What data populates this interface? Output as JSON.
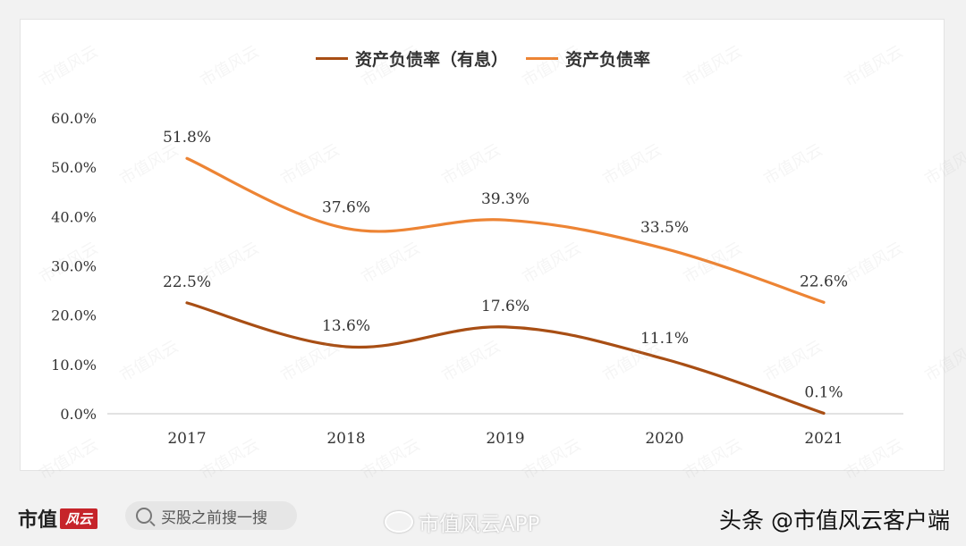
{
  "chart_data": {
    "type": "line",
    "title": "",
    "xlabel": "",
    "ylabel": "",
    "categories": [
      "2017",
      "2018",
      "2019",
      "2020",
      "2021"
    ],
    "ylim": [
      0,
      60
    ],
    "yticks": [
      "0.0%",
      "10.0%",
      "20.0%",
      "30.0%",
      "40.0%",
      "50.0%",
      "60.0%"
    ],
    "grid": false,
    "legend_position": "top-center",
    "series": [
      {
        "name": "资产负债率（有息）",
        "color": "#a84e14",
        "values": [
          22.5,
          13.6,
          17.6,
          11.1,
          0.1
        ],
        "labels": [
          "22.5%",
          "13.6%",
          "17.6%",
          "11.1%",
          "0.1%"
        ]
      },
      {
        "name": "资产负债率",
        "color": "#ed8434",
        "values": [
          51.8,
          37.6,
          39.3,
          33.5,
          22.6
        ],
        "labels": [
          "51.8%",
          "37.6%",
          "39.3%",
          "33.5%",
          "22.6%"
        ]
      }
    ]
  },
  "footer": {
    "brand": "市值",
    "brand_seal": "风云",
    "search_text": "买股之前搜一搜",
    "weibo_text": "市值风云APP",
    "toutiao_text": "头条 @市值风云客户端"
  },
  "watermark_text": "市值风云"
}
